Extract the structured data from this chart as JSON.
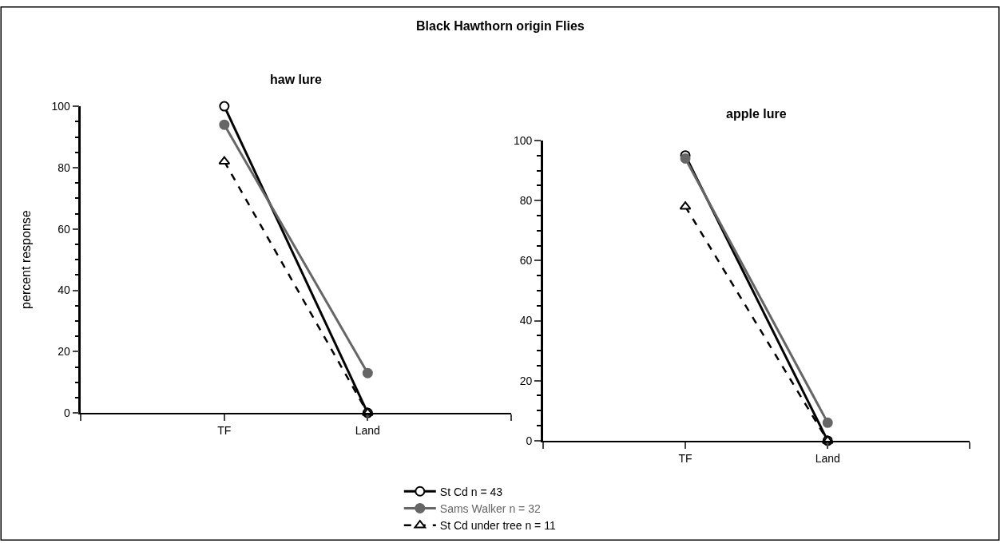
{
  "chart_data": [
    {
      "type": "line",
      "title": "Black Hawthorn origin Flies",
      "subtitle": "haw lure",
      "ylabel": "percent response",
      "categories": [
        "TF",
        "Land"
      ],
      "series": [
        {
          "name": "St Cd n = 43",
          "color": "#000000",
          "marker": "circle",
          "line_style": "solid",
          "values": [
            100,
            0
          ]
        },
        {
          "name": "Sams Walker n = 32",
          "color": "#666666",
          "marker": "circle",
          "line_style": "solid",
          "values": [
            94,
            13
          ]
        },
        {
          "name": "St Cd under tree n = 11",
          "color": "#000000",
          "marker": "triangle",
          "line_style": "dashed",
          "values": [
            82,
            0
          ]
        }
      ],
      "ylim": [
        0,
        100
      ],
      "yticks": [
        0,
        {
          "value": 5,
          "label": null
        },
        {
          "value": 10,
          "label": null
        },
        {
          "value": 15,
          "label": null
        },
        20,
        {
          "value": 25,
          "label": null
        },
        {
          "value": 30,
          "label": null
        },
        {
          "value": 35,
          "label": null
        },
        40,
        {
          "value": 45,
          "label": null
        },
        {
          "value": 50,
          "label": null
        },
        {
          "value": 55,
          "label": null
        },
        60,
        {
          "value": 65,
          "label": null
        },
        {
          "value": 70,
          "label": null
        },
        {
          "value": 75,
          "label": null
        },
        80,
        {
          "value": 85,
          "label": null
        },
        {
          "value": 90,
          "label": null
        },
        {
          "value": 95,
          "label": null
        },
        100
      ],
      "legend": "bottom"
    },
    {
      "type": "line",
      "subtitle": "apple lure",
      "categories": [
        "TF",
        "Land"
      ],
      "series": [
        {
          "color": "#000000",
          "marker": "circle",
          "line_style": "solid",
          "values": [
            95,
            0
          ]
        },
        {
          "color": "#666666",
          "marker": "circle",
          "line_style": "solid",
          "values": [
            94,
            6
          ]
        },
        {
          "color": "#000000",
          "marker": "triangle",
          "line_style": "dashed",
          "values": [
            78,
            0
          ]
        }
      ],
      "ylim": [
        0,
        100
      ],
      "yticks": [
        0,
        {
          "value": 5,
          "label": null
        },
        {
          "value": 10,
          "label": null
        },
        {
          "value": 15,
          "label": null
        },
        20,
        {
          "value": 25,
          "label": null
        },
        {
          "value": 30,
          "label": null
        },
        {
          "value": 35,
          "label": null
        },
        40,
        {
          "value": 45,
          "label": null
        },
        {
          "value": 50,
          "label": null
        },
        {
          "value": 55,
          "label": null
        },
        60,
        {
          "value": 65,
          "label": null
        },
        {
          "value": 70,
          "label": null
        },
        {
          "value": 75,
          "label": null
        },
        80,
        {
          "value": 85,
          "label": null
        },
        {
          "value": 90,
          "label": null
        },
        {
          "value": 95,
          "label": null
        },
        100
      ]
    }
  ]
}
